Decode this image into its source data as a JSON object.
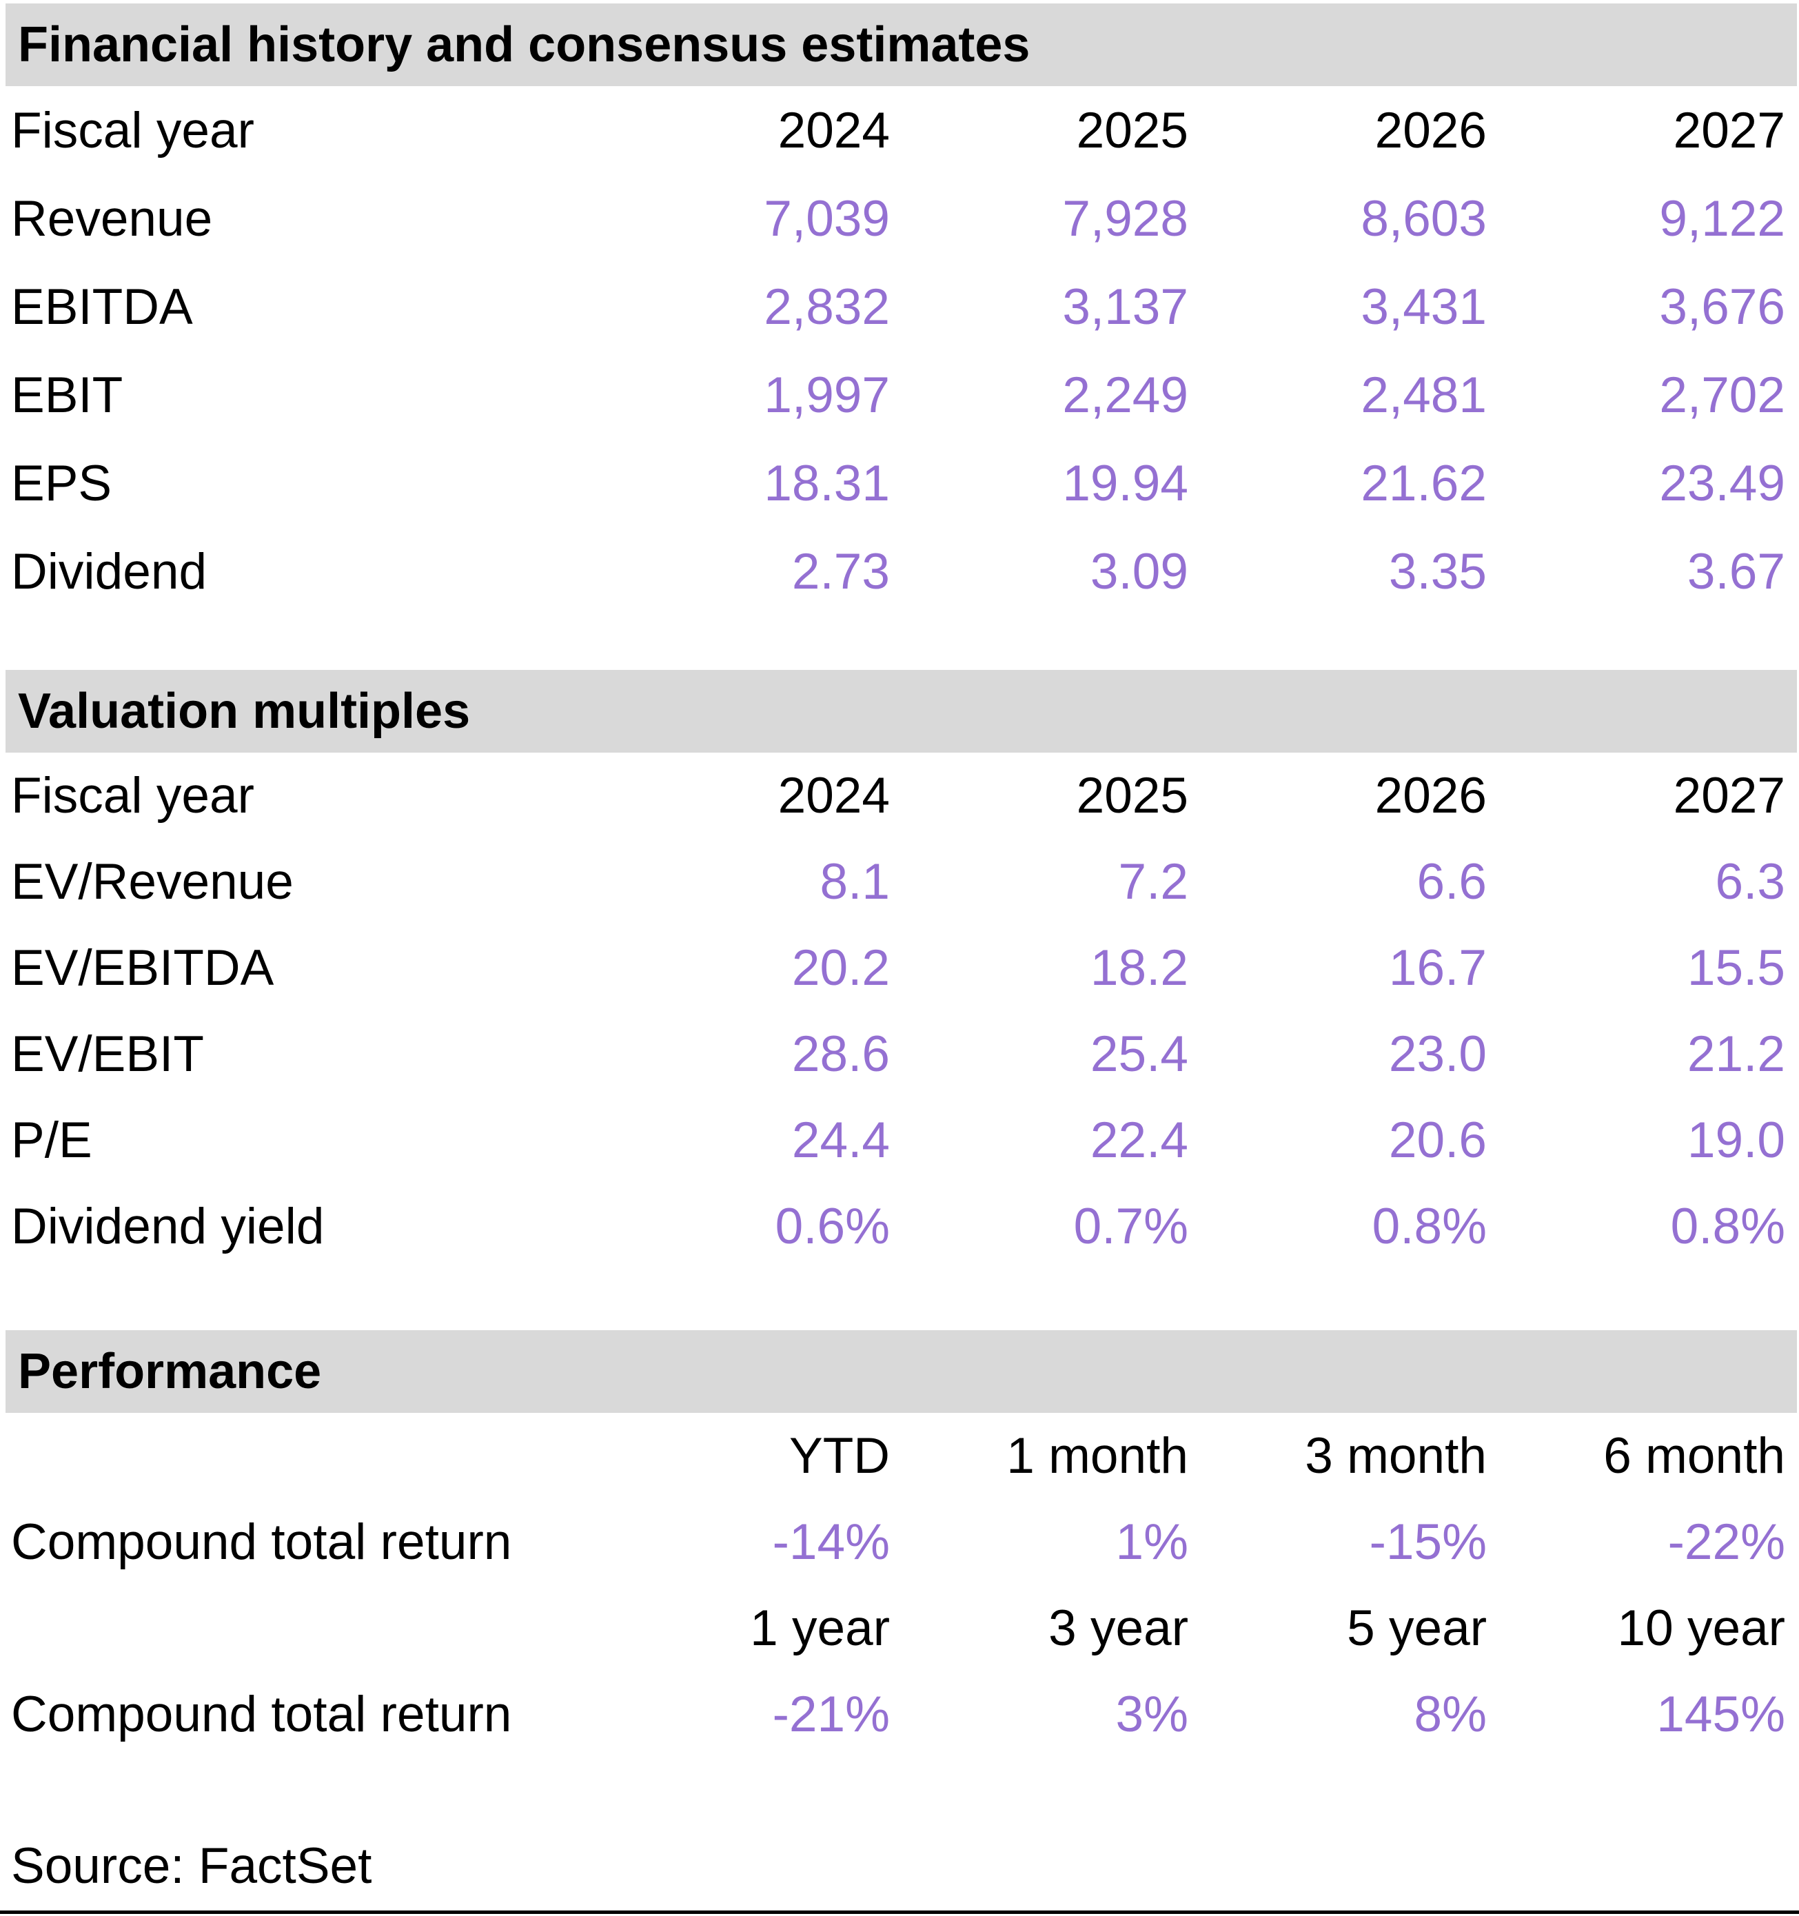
{
  "colors": {
    "accent_value_text": "#9470D2",
    "section_band_bg": "#D9D9D9",
    "label_text": "#000000"
  },
  "sections": [
    {
      "title": "Financial history and consensus estimates",
      "header_row": {
        "label": "Fiscal year",
        "cols": [
          "2024",
          "2025",
          "2026",
          "2027"
        ]
      },
      "rows": [
        {
          "label": "Revenue",
          "values": [
            "7,039",
            "7,928",
            "8,603",
            "9,122"
          ]
        },
        {
          "label": "EBITDA",
          "values": [
            "2,832",
            "3,137",
            "3,431",
            "3,676"
          ]
        },
        {
          "label": "EBIT",
          "values": [
            "1,997",
            "2,249",
            "2,481",
            "2,702"
          ]
        },
        {
          "label": "EPS",
          "values": [
            "18.31",
            "19.94",
            "21.62",
            "23.49"
          ]
        },
        {
          "label": "Dividend",
          "values": [
            "2.73",
            "3.09",
            "3.35",
            "3.67"
          ]
        }
      ]
    },
    {
      "title": "Valuation multiples",
      "header_row": {
        "label": "Fiscal year",
        "cols": [
          "2024",
          "2025",
          "2026",
          "2027"
        ]
      },
      "rows": [
        {
          "label": "EV/Revenue",
          "values": [
            "8.1",
            "7.2",
            "6.6",
            "6.3"
          ]
        },
        {
          "label": "EV/EBITDA",
          "values": [
            "20.2",
            "18.2",
            "16.7",
            "15.5"
          ]
        },
        {
          "label": "EV/EBIT",
          "values": [
            "28.6",
            "25.4",
            "23.0",
            "21.2"
          ]
        },
        {
          "label": "P/E",
          "values": [
            "24.4",
            "22.4",
            "20.6",
            "19.0"
          ]
        },
        {
          "label": "Dividend yield",
          "values": [
            "0.6%",
            "0.7%",
            "0.8%",
            "0.8%"
          ]
        }
      ]
    },
    {
      "title": "Performance",
      "subtables": [
        {
          "header": [
            "YTD",
            "1 month",
            "3 month",
            "6 month"
          ],
          "row_label": "Compound total return",
          "values": [
            "-14%",
            "1%",
            "-15%",
            "-22%"
          ]
        },
        {
          "header": [
            "1 year",
            "3 year",
            "5 year",
            "10 year"
          ],
          "row_label": "Compound total return",
          "values": [
            "-21%",
            "3%",
            "8%",
            "145%"
          ]
        }
      ]
    }
  ],
  "source": "Source: FactSet"
}
